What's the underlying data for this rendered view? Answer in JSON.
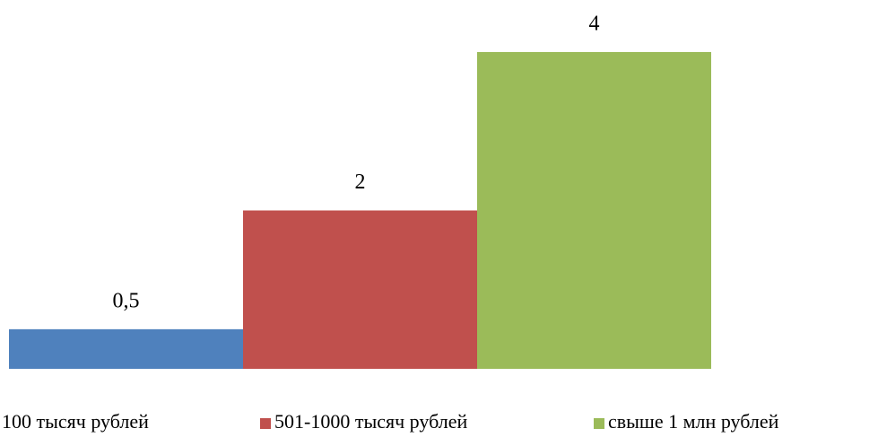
{
  "chart_data": {
    "type": "bar",
    "categories": [
      null
    ],
    "series": [
      {
        "name": "100 тысяч рублей",
        "color": "#4f81bd",
        "values": [
          0.5
        ],
        "value_labels": [
          "0,5"
        ]
      },
      {
        "name": "501-1000  тысяч рублей",
        "color": "#c0504d",
        "values": [
          2
        ],
        "value_labels": [
          "2"
        ]
      },
      {
        "name": "свыше 1 млн рублей",
        "color": "#9bbb59",
        "values": [
          4
        ],
        "value_labels": [
          "4"
        ]
      }
    ],
    "ylim": [
      0,
      4
    ]
  }
}
